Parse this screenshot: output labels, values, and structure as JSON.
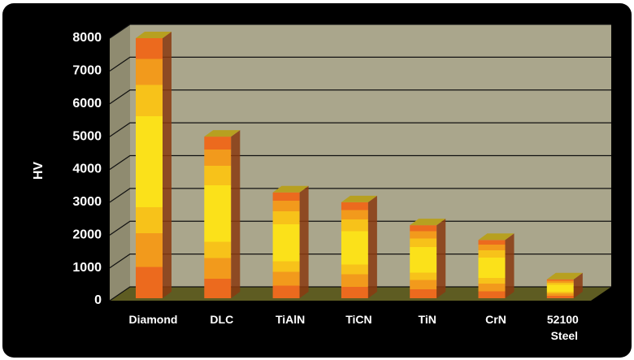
{
  "chart_data": {
    "type": "bar",
    "y_label": "HV",
    "categories": [
      "Diamond",
      "DLC",
      "TiAlN",
      "TiCN",
      "TiN",
      "CrN",
      "52100 Steel"
    ],
    "values": [
      8000,
      5000,
      3300,
      3000,
      2300,
      1850,
      650
    ],
    "color": "#f7c21a",
    "ylim": [
      0,
      8000
    ],
    "yticks": [
      0,
      1000,
      2000,
      3000,
      4000,
      5000,
      6000,
      7000,
      8000
    ],
    "grid": true
  }
}
